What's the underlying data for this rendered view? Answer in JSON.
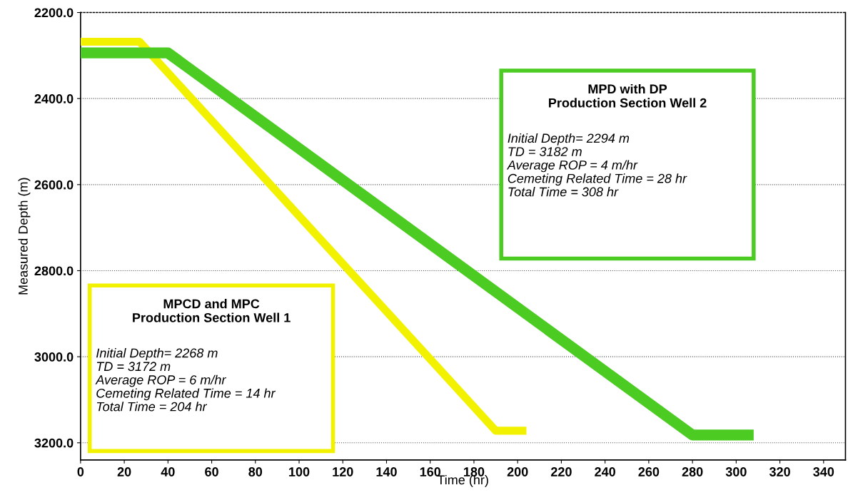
{
  "chart_data": {
    "type": "line",
    "xlabel": "Time (hr)",
    "ylabel": "Measured Depth (m)",
    "xlim": [
      0,
      350
    ],
    "xticks": [
      0,
      20,
      40,
      60,
      80,
      100,
      120,
      140,
      160,
      180,
      200,
      220,
      240,
      260,
      280,
      300,
      320,
      340
    ],
    "ylim": [
      3240,
      2200
    ],
    "yticks": [
      {
        "value": 2200,
        "label": "2200.0"
      },
      {
        "value": 2400,
        "label": "2400.0"
      },
      {
        "value": 2600,
        "label": "2600.0"
      },
      {
        "value": 2800,
        "label": "2800.0"
      },
      {
        "value": 3000,
        "label": "3000.0"
      },
      {
        "value": 3200,
        "label": "3200.0"
      }
    ],
    "grid": "y",
    "marker": "none",
    "line_style": "solid",
    "series": [
      {
        "color": "#f2f200",
        "x": [
          0,
          27,
          190,
          204
        ],
        "values": [
          2268,
          2268,
          3172,
          3172
        ]
      },
      {
        "color": "#4ccc22",
        "x": [
          0,
          40,
          280,
          308
        ],
        "values": [
          2294,
          2294,
          3182,
          3182
        ]
      }
    ],
    "annotations": [
      "MPCD and MPC\nProduction Section Well 1",
      "Initial Depth= 2268 m\nTD = 3172 m\nAverage ROP = 6 m/hr\nCemeting Related Time = 14 hr\nTotal Time = 204 hr",
      "MPD with DP\nProduction Section Well 2",
      "Initial Depth= 2294 m\nTD = 3182 m\nAverage ROP = 4 m/hr\nCemeting Related Time = 28 hr\nTotal Time = 308 hr"
    ]
  }
}
